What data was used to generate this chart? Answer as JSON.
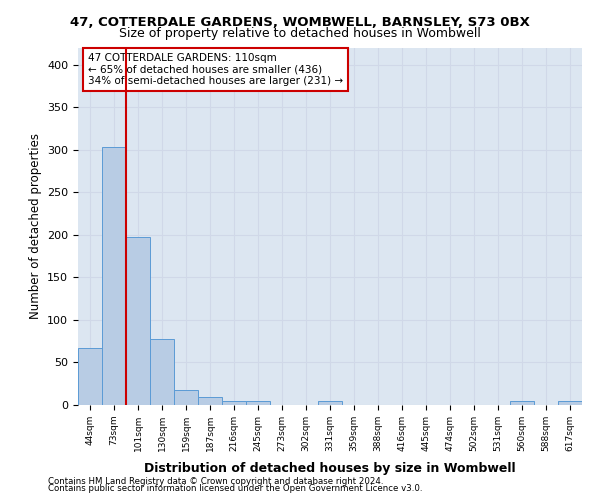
{
  "title1": "47, COTTERDALE GARDENS, WOMBWELL, BARNSLEY, S73 0BX",
  "title2": "Size of property relative to detached houses in Wombwell",
  "xlabel": "Distribution of detached houses by size in Wombwell",
  "ylabel": "Number of detached properties",
  "bar_values": [
    67,
    303,
    197,
    77,
    18,
    9,
    5,
    5,
    0,
    0,
    5,
    0,
    0,
    0,
    0,
    0,
    0,
    0,
    5,
    0,
    5
  ],
  "bin_labels": [
    "44sqm",
    "73sqm",
    "101sqm",
    "130sqm",
    "159sqm",
    "187sqm",
    "216sqm",
    "245sqm",
    "273sqm",
    "302sqm",
    "331sqm",
    "359sqm",
    "388sqm",
    "416sqm",
    "445sqm",
    "474sqm",
    "502sqm",
    "531sqm",
    "560sqm",
    "588sqm",
    "617sqm"
  ],
  "bar_color": "#b8cce4",
  "bar_edge_color": "#5b9bd5",
  "grid_color": "#d0d8e8",
  "background_color": "#dce6f1",
  "vline_color": "#cc0000",
  "annotation_text": "47 COTTERDALE GARDENS: 110sqm\n← 65% of detached houses are smaller (436)\n34% of semi-detached houses are larger (231) →",
  "annotation_box_color": "#ffffff",
  "annotation_box_edgecolor": "#cc0000",
  "ylim": [
    0,
    420
  ],
  "yticks": [
    0,
    50,
    100,
    150,
    200,
    250,
    300,
    350,
    400
  ],
  "footer1": "Contains HM Land Registry data © Crown copyright and database right 2024.",
  "footer2": "Contains public sector information licensed under the Open Government Licence v3.0."
}
